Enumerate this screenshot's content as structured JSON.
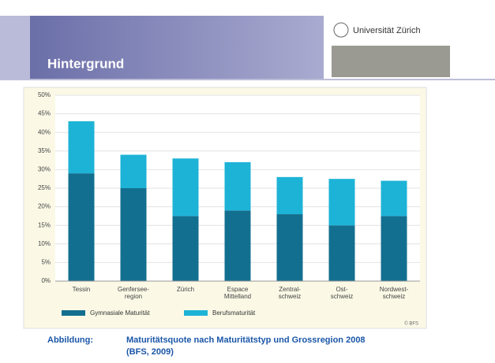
{
  "slide": {
    "title": "Hintergrund",
    "logo": "Universität Zürich",
    "caption_label": "Abbildung:",
    "caption": [
      "Maturitätsquote nach Maturitätstyp und Grossregion 2008",
      "(BFS, 2009)"
    ]
  },
  "chart_data": {
    "type": "stacked-bar",
    "categories": [
      [
        "Tessin"
      ],
      [
        "Genfersee-",
        "region"
      ],
      [
        "Zürich"
      ],
      [
        "Espace",
        "Mittelland"
      ],
      [
        "Zentral-",
        "schweiz"
      ],
      [
        "Ost-",
        "schweiz"
      ],
      [
        "Nordwest-",
        "schweiz"
      ]
    ],
    "series": [
      {
        "name": "Gymnasiale Maturität",
        "color": "#136f8f",
        "values": [
          29,
          25,
          17.5,
          19,
          18,
          15,
          17.5
        ]
      },
      {
        "name": "Berufsmaturität",
        "color": "#1db3d6",
        "values": [
          14,
          9,
          15.5,
          13,
          10,
          12.5,
          9.5
        ]
      }
    ],
    "ylim": [
      0,
      50
    ],
    "yticks": [
      {
        "value": 0,
        "label": "0%"
      },
      {
        "value": 5,
        "label": "5%"
      },
      {
        "value": 10,
        "label": "10%"
      },
      {
        "value": 15,
        "label": "15%"
      },
      {
        "value": 20,
        "label": "20%"
      },
      {
        "value": 25,
        "label": "25%"
      },
      {
        "value": 30,
        "label": "30%"
      },
      {
        "value": 35,
        "label": "35%"
      },
      {
        "value": 40,
        "label": "40%"
      },
      {
        "value": 45,
        "label": "45%"
      },
      {
        "value": 50,
        "label": "50%"
      }
    ],
    "grid": true,
    "source": "© BFS"
  }
}
